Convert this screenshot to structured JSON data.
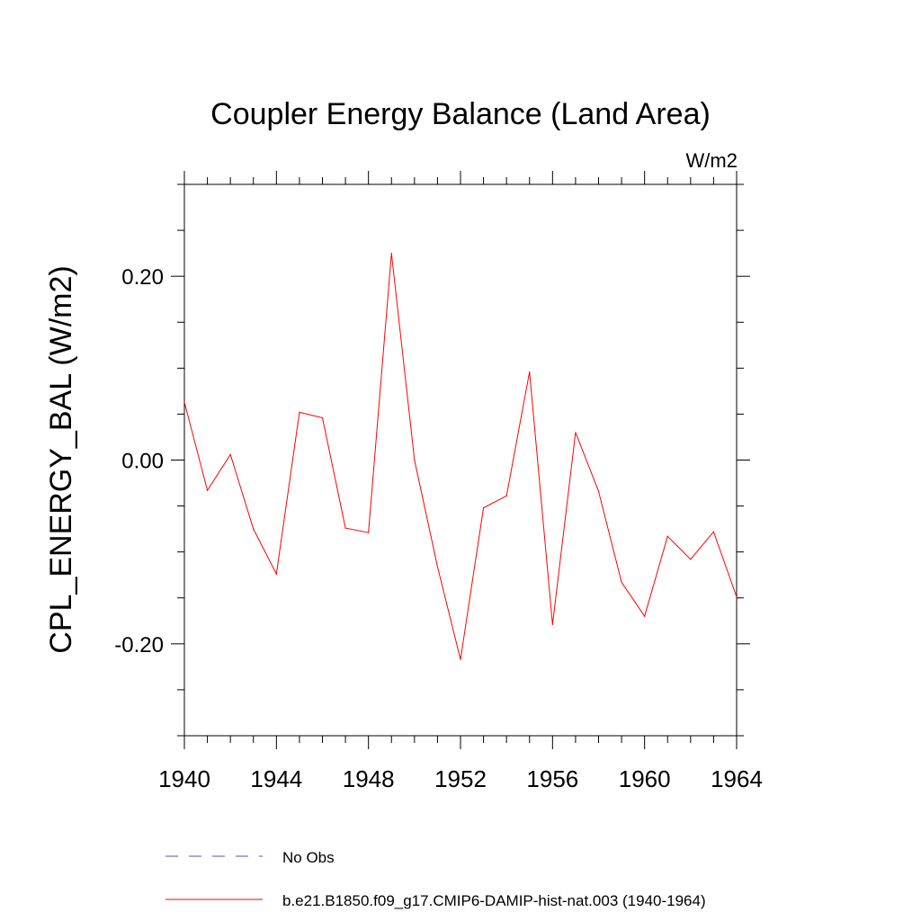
{
  "chart_data": {
    "type": "line",
    "title": "Coupler Energy Balance (Land Area)",
    "units_label": "W/m2",
    "ylabel": "CPL_ENERGY_BAL  (W/m2)",
    "xlabel": "",
    "xlim": [
      1940,
      1964
    ],
    "ylim": [
      -0.3,
      0.3
    ],
    "x_ticks": [
      1940,
      1944,
      1948,
      1952,
      1956,
      1960,
      1964
    ],
    "y_ticks": [
      {
        "value": 0.2,
        "label": "0.20"
      },
      {
        "value": 0.0,
        "label": "0.00"
      },
      {
        "value": -0.2,
        "label": "-0.20"
      }
    ],
    "y_minor_step": 0.05,
    "x_minor_step": 1,
    "grid": false,
    "legend_position": "bottom",
    "series": [
      {
        "name": "No Obs",
        "color": "#5a4fb0",
        "style": "dashed",
        "x": [],
        "values": []
      },
      {
        "name": "b.e21.B1850.f09_g17.CMIP6-DAMIP-hist-nat.003 (1940-1964)",
        "color": "#ff0000",
        "style": "solid",
        "x": [
          1940,
          1941,
          1942,
          1943,
          1944,
          1945,
          1946,
          1947,
          1948,
          1949,
          1950,
          1951,
          1952,
          1953,
          1954,
          1955,
          1956,
          1957,
          1958,
          1959,
          1960,
          1961,
          1962,
          1963,
          1964
        ],
        "values": [
          0.063,
          -0.033,
          0.006,
          -0.075,
          -0.124,
          0.052,
          0.046,
          -0.074,
          -0.079,
          0.225,
          0.0,
          -0.116,
          -0.217,
          -0.052,
          -0.039,
          0.096,
          -0.179,
          0.03,
          -0.034,
          -0.133,
          -0.17,
          -0.083,
          -0.108,
          -0.078,
          -0.149
        ]
      }
    ]
  }
}
